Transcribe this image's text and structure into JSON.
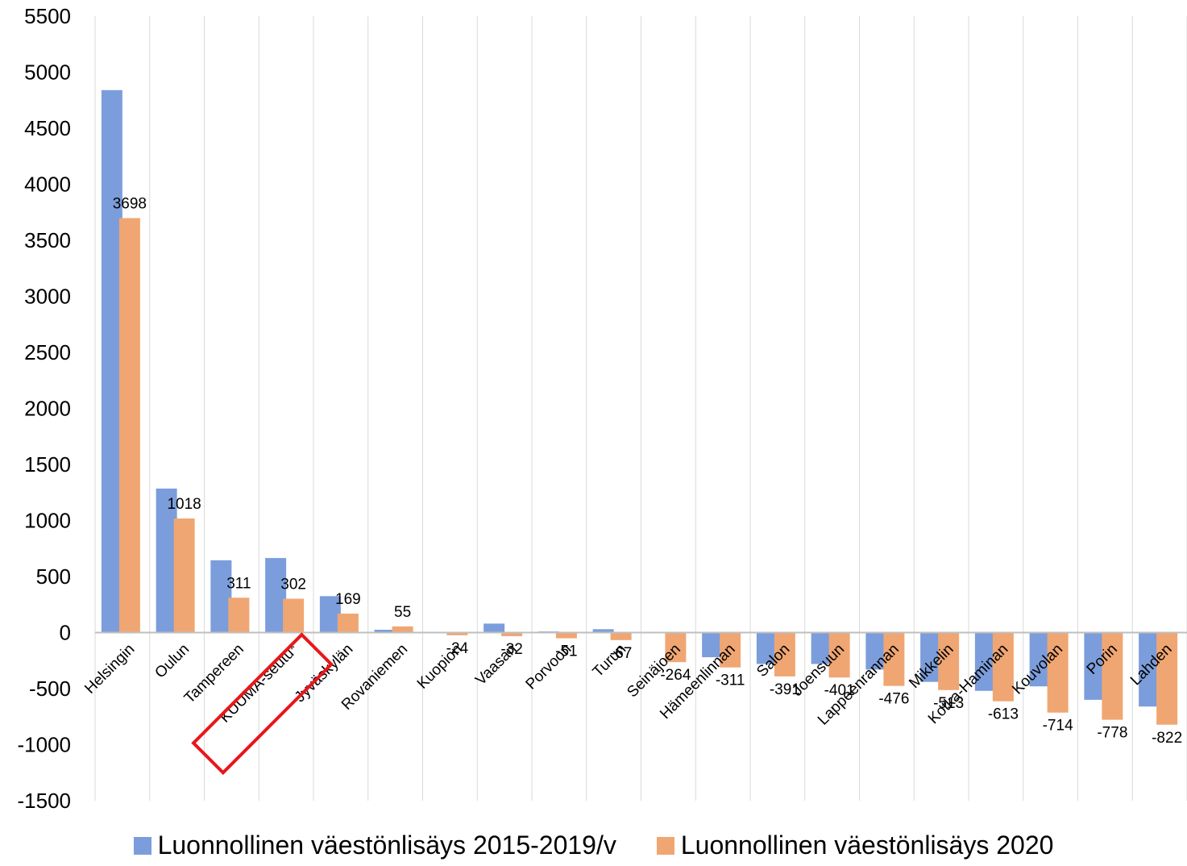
{
  "chart_data": {
    "type": "bar",
    "title": "",
    "xlabel": "",
    "ylabel": "",
    "ylim": [
      -1500,
      5500
    ],
    "yticks": [
      5500,
      5000,
      4500,
      4000,
      3500,
      3000,
      2500,
      2000,
      1500,
      1000,
      500,
      0,
      -500,
      -1000,
      -1500
    ],
    "grid": "vertical",
    "legend_position": "bottom",
    "categories": [
      "Helsingin",
      "Oulun",
      "Tampereen",
      "KUUMA-seutu*",
      "Jyväskylän",
      "Rovaniemen",
      "Kuopion",
      "Vaasan",
      "Porvoon",
      "Turun",
      "Seinäjoen",
      "Hämeenlinnan",
      "Salon",
      "Joensuun",
      "Lappeenrannan",
      "Mikkelin",
      "Kotka-Haminan",
      "Kouvolan",
      "Porin",
      "Lahden"
    ],
    "highlighted_category": "KUUMA-seutu*",
    "highlight_color": "#e8161b",
    "series": [
      {
        "name": "Luonnollinen väestönlisäys 2015-2019/v",
        "color": "#7b9ddb",
        "values": [
          4840,
          1285,
          645,
          665,
          325,
          25,
          5,
          80,
          10,
          30,
          5,
          -220,
          -280,
          -280,
          -330,
          -440,
          -520,
          -480,
          -600,
          -660
        ]
      },
      {
        "name": "Luonnollinen väestönlisäys 2020",
        "color": "#f0a672",
        "values": [
          3698,
          1018,
          311,
          302,
          169,
          55,
          -24,
          -32,
          -51,
          -67,
          -264,
          -311,
          -391,
          -401,
          -476,
          -513,
          -613,
          -714,
          -778,
          -822
        ],
        "data_labels": [
          "3698",
          "1018",
          "311",
          "302",
          "169",
          "55",
          "-24",
          "-32",
          "-51",
          "-67",
          "-264",
          "-311",
          "-391",
          "-401",
          "-476",
          "-513",
          "-613",
          "-714",
          "-778",
          "-822"
        ]
      }
    ]
  }
}
